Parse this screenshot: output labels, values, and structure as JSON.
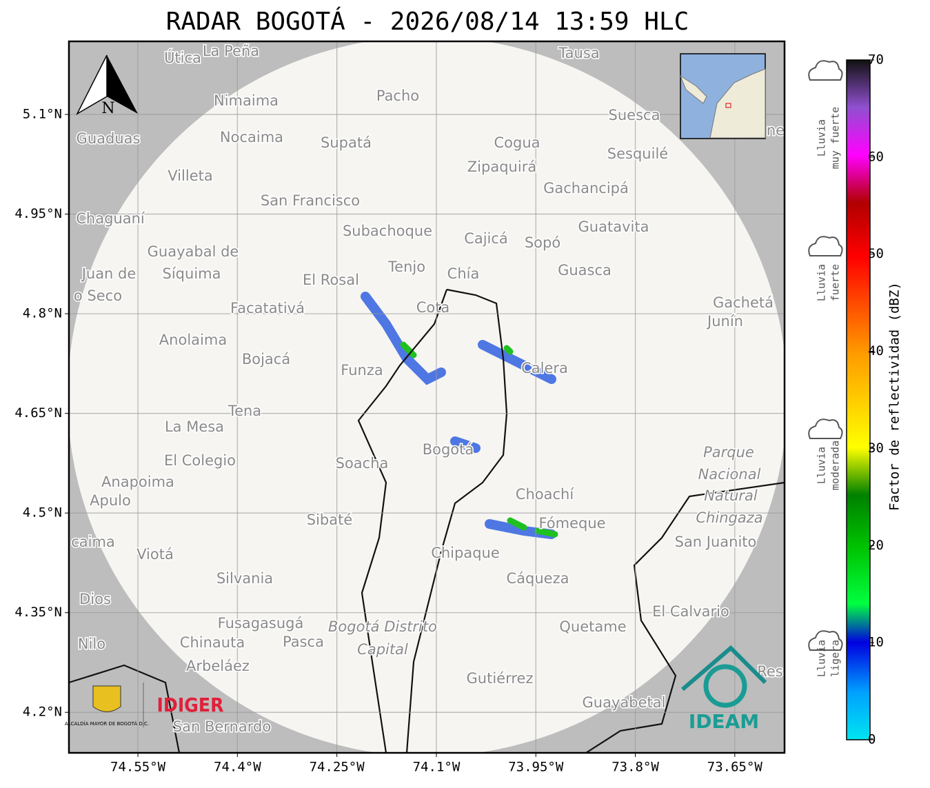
{
  "map": {
    "title": "RADAR BOGOTÁ - 2026/08/14 13:59 HLC",
    "xlim": [
      -74.654,
      -73.575
    ],
    "ylim": [
      4.139,
      5.21
    ],
    "xticks": [
      {
        "value": -74.55,
        "label": "74.55°W"
      },
      {
        "value": -74.4,
        "label": "74.4°W"
      },
      {
        "value": -74.25,
        "label": "74.25°W"
      },
      {
        "value": -74.1,
        "label": "74.1°W"
      },
      {
        "value": -73.95,
        "label": "73.95°W"
      },
      {
        "value": -73.8,
        "label": "73.8°W"
      },
      {
        "value": -73.65,
        "label": "73.65°W"
      }
    ],
    "yticks": [
      {
        "value": 5.1,
        "label": "5.1°N"
      },
      {
        "value": 4.95,
        "label": "4.95°N"
      },
      {
        "value": 4.8,
        "label": "4.8°N"
      },
      {
        "value": 4.65,
        "label": "4.65°N"
      },
      {
        "value": 4.5,
        "label": "4.5°N"
      },
      {
        "value": 4.35,
        "label": "4.35°N"
      },
      {
        "value": 4.2,
        "label": "4.2°N"
      }
    ],
    "places": [
      "Útica",
      "La Peña",
      "Tausa",
      "Pacho",
      "Nimaima",
      "Guaduas",
      "Nocaima",
      "Supatá",
      "Cogua",
      "Suesca",
      "Sesquilé",
      "Zipaquirá",
      "Villeta",
      "Gachancipá",
      "San Francisco",
      "Chaguaní",
      "Guatavita",
      "Subachoque",
      "Cajicá",
      "Sopó",
      "Guayabal de",
      "Tenjo",
      "Chía",
      "Guasca",
      "Juan de",
      "Síquima",
      "El Rosal",
      "o Seco",
      "Facatativá",
      "Cota",
      "Gachetá",
      "Junín",
      "Anolaima",
      "Bojacá",
      "Funza",
      "Calera",
      "Tena",
      "La Mesa",
      "El Colegio",
      "Bogotá",
      "Soacha",
      "Parque",
      "Nacional",
      "Natural",
      "Chingaza",
      "Anapoima",
      "Apulo",
      "Choachí",
      "Sibaté",
      "Fómeque",
      "San Juanito",
      "caima",
      "Viotá",
      "Chipaque",
      "Silvania",
      "Cáqueza",
      "Dios",
      "El Calvario",
      "Fusagasugá",
      "Bogotá Distrito",
      "Capital",
      "Quetame",
      "Nilo",
      "Chinauta",
      "Pasca",
      "Arbeláez",
      "Gutiérrez",
      "Res",
      "Guayabetal",
      "San Bernardo",
      "ne"
    ],
    "north": "N",
    "logo_left_caption": "ALCALDÍA MAYOR DE BOGOTÁ D.C.",
    "logo_idiger": "IDIGER",
    "logo_ideam": "IDEAM"
  },
  "colorbar": {
    "label": "Factor de reflectividad (dBZ)",
    "ylim": [
      0,
      70
    ],
    "yticks": [
      0,
      10,
      20,
      30,
      40,
      50,
      60,
      70
    ],
    "categories": [
      [
        "Lluvia",
        "muy fuerte"
      ],
      [
        "Lluvia",
        "fuerte"
      ],
      [
        "Lluvia",
        "moderada"
      ],
      [
        "Lluvia",
        "ligera"
      ]
    ]
  }
}
